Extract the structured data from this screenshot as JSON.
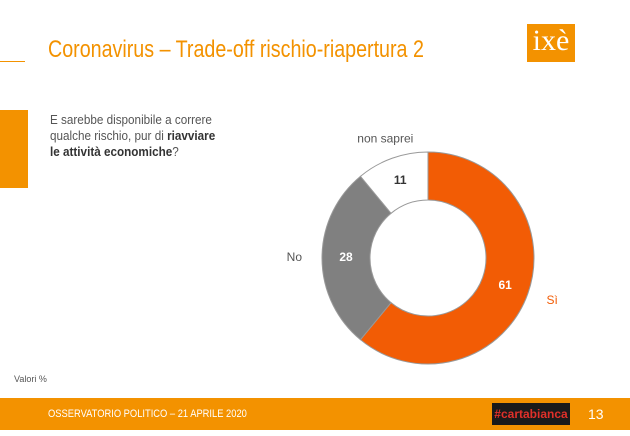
{
  "header": {
    "title": "Coronavirus – Trade-off rischio-riapertura 2",
    "logo": "ixè"
  },
  "question": {
    "text": "E sarebbe disponibile a correre qualche rischio, pur di",
    "bold": "riavviare le attività economiche",
    "end": "?"
  },
  "chart_data": {
    "type": "pie",
    "donut": true,
    "categories": [
      "Sì",
      "No",
      "non saprei"
    ],
    "values": [
      61,
      28,
      11
    ],
    "colors": [
      "#f25c05",
      "#808080",
      "#ffffff"
    ],
    "label_colors": [
      "#f25c05",
      "#555555",
      "#555555"
    ]
  },
  "note": "Valori %",
  "footer": {
    "left": "OSSERVATORIO POLITICO – 21 APRILE 2020",
    "tag": "#cartabianca",
    "page": "13"
  }
}
